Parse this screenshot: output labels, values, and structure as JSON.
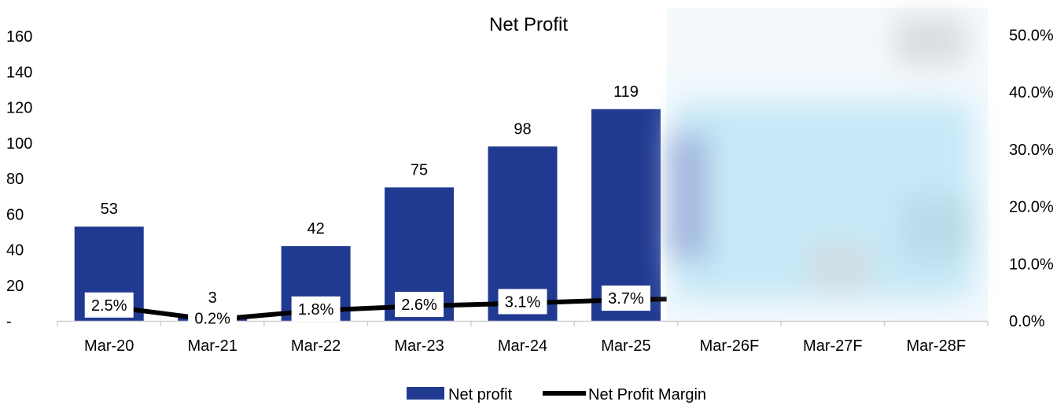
{
  "chart_data": {
    "type": "bar",
    "title": "Net Profit",
    "categories": [
      "Mar-20",
      "Mar-21",
      "Mar-22",
      "Mar-23",
      "Mar-24",
      "Mar-25",
      "Mar-26F",
      "Mar-27F",
      "Mar-28F"
    ],
    "series": [
      {
        "name": "Net profit",
        "type": "bar",
        "axis": "left",
        "values": [
          53,
          3,
          42,
          75,
          98,
          119,
          null,
          null,
          null
        ],
        "labels": [
          "53",
          "3",
          "42",
          "75",
          "98",
          "119",
          "",
          "",
          ""
        ]
      },
      {
        "name": "Net Profit Margin",
        "type": "line",
        "axis": "right",
        "values": [
          0.025,
          0.002,
          0.018,
          0.026,
          0.031,
          0.037,
          null,
          null,
          null
        ],
        "labels": [
          "2.5%",
          "0.2%",
          "1.8%",
          "2.6%",
          "3.1%",
          "3.7%",
          "",
          "",
          ""
        ]
      }
    ],
    "y_left": {
      "min": 0,
      "max": 160,
      "ticks": [
        0,
        20,
        40,
        60,
        80,
        100,
        120,
        140,
        160
      ],
      "tick_labels": [
        "-",
        "20",
        "40",
        "60",
        "80",
        "100",
        "120",
        "140",
        "160"
      ]
    },
    "y_right": {
      "min": 0,
      "max": 0.55,
      "ticks": [
        0,
        0.1,
        0.2,
        0.3,
        0.4,
        0.5
      ],
      "tick_labels": [
        "0.0%",
        "10.0%",
        "20.0%",
        "30.0%",
        "40.0%",
        "50.0%"
      ]
    },
    "forecast_region_blurred": true,
    "legend_position": "bottom",
    "grid": false,
    "colors": {
      "bar": "#213a91",
      "line": "#000000"
    }
  }
}
